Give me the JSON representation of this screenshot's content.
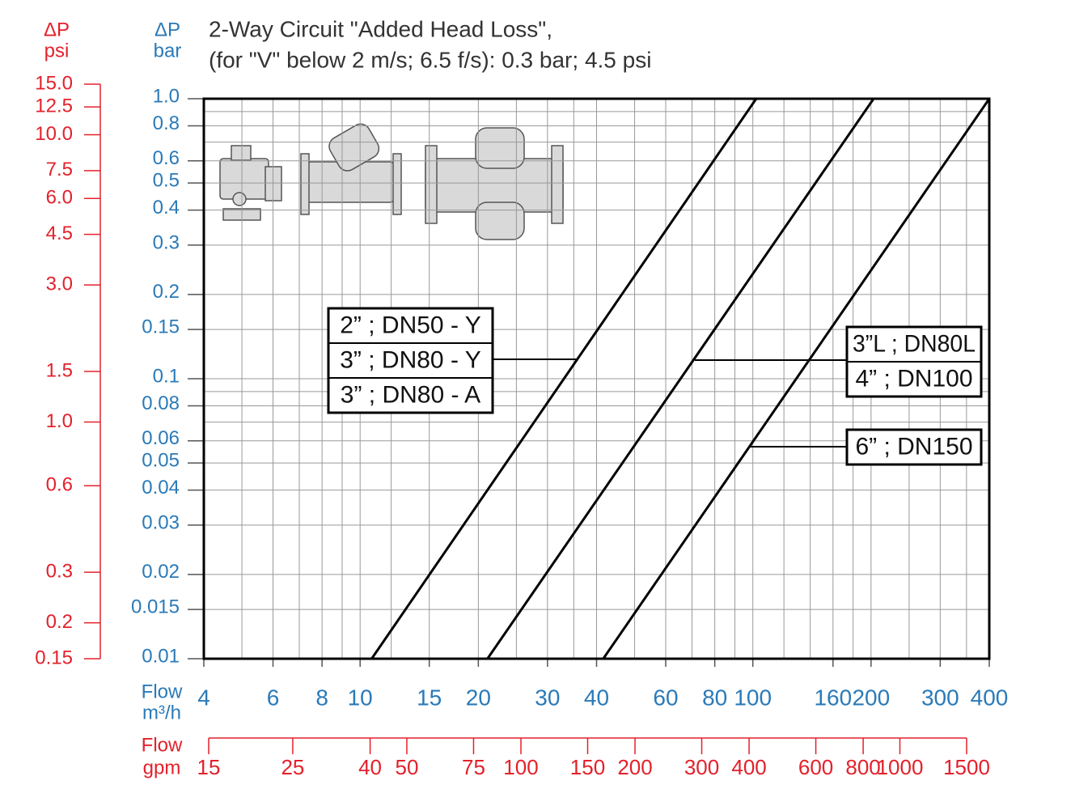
{
  "chart_data": {
    "type": "line",
    "title": "2-Way Circuit \"Added Head Loss\",",
    "subtitle": "(for \"V\" below 2 m/s; 6.5 f/s): 0.3 bar; 4.5 psi",
    "y_label": [
      "ΔP",
      "bar"
    ],
    "y2_label": [
      "ΔP",
      "psi"
    ],
    "x_label": [
      "Flow",
      "m³/h"
    ],
    "x2_label": [
      "Flow",
      "gpm"
    ],
    "log_x": true,
    "log_y": true,
    "grid": true,
    "xlim": [
      4,
      400
    ],
    "xticks": [
      4,
      6,
      8,
      10,
      15,
      20,
      30,
      40,
      60,
      80,
      100,
      160,
      200,
      300,
      400
    ],
    "xminor": [
      5,
      7,
      9,
      12,
      25,
      35,
      50,
      70,
      90,
      120,
      140,
      180,
      250,
      350
    ],
    "x2lim": [
      15,
      1500
    ],
    "x2ticks": [
      15,
      25,
      40,
      50,
      75,
      100,
      150,
      200,
      300,
      400,
      600,
      800,
      1000,
      1500
    ],
    "ylim": [
      0.01,
      1
    ],
    "yticks": [
      {
        "value": 1,
        "label": "1.0"
      },
      0.8,
      0.6,
      0.5,
      0.4,
      0.3,
      0.2,
      0.15,
      0.1,
      0.08,
      0.06,
      0.05,
      0.04,
      0.03,
      0.02,
      0.015,
      0.01
    ],
    "yminor": [
      0.9,
      0.7,
      0.09,
      0.07
    ],
    "y2lim": [
      0.15,
      15
    ],
    "y2ticks": [
      {
        "value": 15,
        "label": "15.0"
      },
      12.5,
      {
        "value": 10,
        "label": "10.0"
      },
      7.5,
      {
        "value": 6,
        "label": "6.0"
      },
      4.5,
      {
        "value": 3,
        "label": "3.0"
      },
      1.5,
      {
        "value": 1,
        "label": "1.0"
      },
      0.6,
      0.3,
      0.2,
      0.15
    ],
    "series": [
      {
        "labels": [
          "2” ; DN50 - Y",
          "3” ; DN80 - Y",
          "3” ; DN80 - A"
        ],
        "color": "#000000",
        "x": [
          10.7,
          102
        ],
        "values": [
          0.01,
          1
        ]
      },
      {
        "labels": [
          "3”L ; DN80L",
          "4” ; DN100"
        ],
        "color": "#000000",
        "x": [
          21.1,
          203
        ],
        "values": [
          0.01,
          1
        ]
      },
      {
        "labels": [
          "6” ; DN150"
        ],
        "color": "#000000",
        "x": [
          41.6,
          400
        ],
        "values": [
          0.01,
          1
        ]
      }
    ]
  }
}
